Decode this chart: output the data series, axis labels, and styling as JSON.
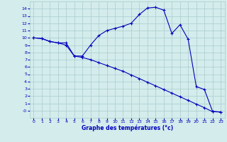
{
  "xlabel": "Graphe des températures (°c)",
  "background_color": "#d4ecec",
  "grid_color": "#a8cccc",
  "line_color": "#0000bb",
  "hours": [
    0,
    1,
    2,
    3,
    4,
    5,
    6,
    7,
    8,
    9,
    10,
    11,
    12,
    13,
    14,
    15,
    16,
    17,
    18,
    19,
    20,
    21,
    22,
    23
  ],
  "temp1": [
    10.0,
    9.9,
    9.5,
    9.3,
    9.3,
    7.5,
    7.5,
    9.0,
    10.3,
    11.0,
    11.3,
    11.6,
    12.0,
    13.2,
    14.1,
    14.2,
    13.8,
    10.6,
    11.8,
    9.8,
    3.3,
    2.9,
    -0.1,
    -0.2
  ],
  "temp2": [
    10.0,
    9.9,
    9.5,
    9.3,
    9.0,
    7.5,
    7.3,
    7.0,
    6.6,
    6.2,
    5.8,
    5.4,
    4.9,
    4.4,
    3.9,
    3.4,
    2.9,
    2.4,
    1.9,
    1.4,
    0.9,
    0.4,
    -0.15,
    -0.2
  ],
  "ylim": [
    -1,
    15
  ],
  "xlim": [
    -0.5,
    23.5
  ],
  "ytick_vals": [
    0,
    1,
    2,
    3,
    4,
    5,
    6,
    7,
    8,
    9,
    10,
    11,
    12,
    13,
    14
  ],
  "ytick_labels": [
    "-0",
    "1",
    "2",
    "3",
    "4",
    "5",
    "6",
    "7",
    "8",
    "9",
    "10",
    "11",
    "12",
    "13",
    "14"
  ],
  "xticks": [
    0,
    1,
    2,
    3,
    4,
    5,
    6,
    7,
    8,
    9,
    10,
    11,
    12,
    13,
    14,
    15,
    16,
    17,
    18,
    19,
    20,
    21,
    22,
    23
  ]
}
